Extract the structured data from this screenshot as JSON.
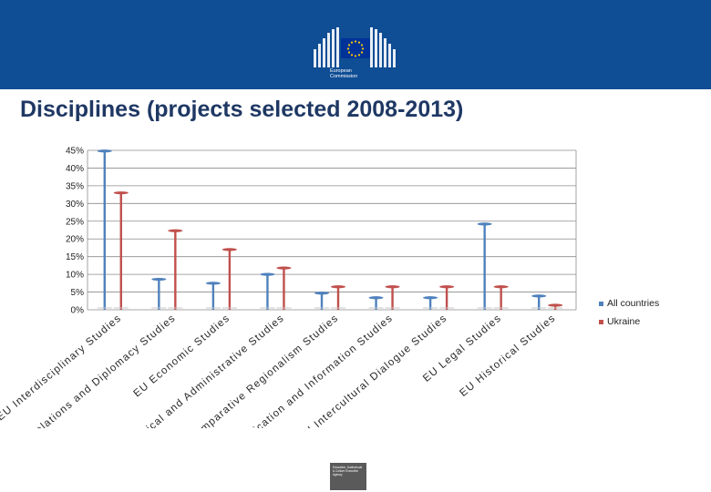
{
  "header": {
    "org_line1": "European",
    "org_line2": "Commission",
    "colors": {
      "banner": "#0f4d94",
      "flag": "#003399",
      "stars": "#ffcc00"
    }
  },
  "page": {
    "title": "Disciplines (projects selected 2008-2013)"
  },
  "footer": {
    "agency_text": "Education, Audiovisual & Culture Executive Agency"
  },
  "chart_data": {
    "type": "bar",
    "title": "",
    "xlabel": "",
    "ylabel": "",
    "ylim": [
      0,
      45
    ],
    "y_ticks": [
      "0%",
      "5%",
      "10%",
      "15%",
      "20%",
      "25%",
      "30%",
      "35%",
      "40%",
      "45%"
    ],
    "grid": true,
    "legend_position": "right",
    "categories": [
      "EU Interdisciplinary Studies",
      "EU International Relations and Diplomacy Studies",
      "EU Economic Studies",
      "EU Political and Administrative Studies",
      "EU and Comparative Regionalism Studies",
      "EU Communication and Information Studies",
      "EU Intercultural Dialogue Studies",
      "EU Legal Studies",
      "EU Historical Studies"
    ],
    "series": [
      {
        "name": "All countries",
        "color": "#4f81bd",
        "values": [
          44.8,
          8.6,
          7.5,
          10.0,
          4.7,
          3.4,
          3.4,
          24.2,
          3.9
        ]
      },
      {
        "name": "Ukraine",
        "color": "#c0504d",
        "values": [
          33.0,
          22.3,
          17.0,
          11.8,
          6.5,
          6.5,
          6.5,
          6.5,
          1.3
        ]
      }
    ]
  }
}
